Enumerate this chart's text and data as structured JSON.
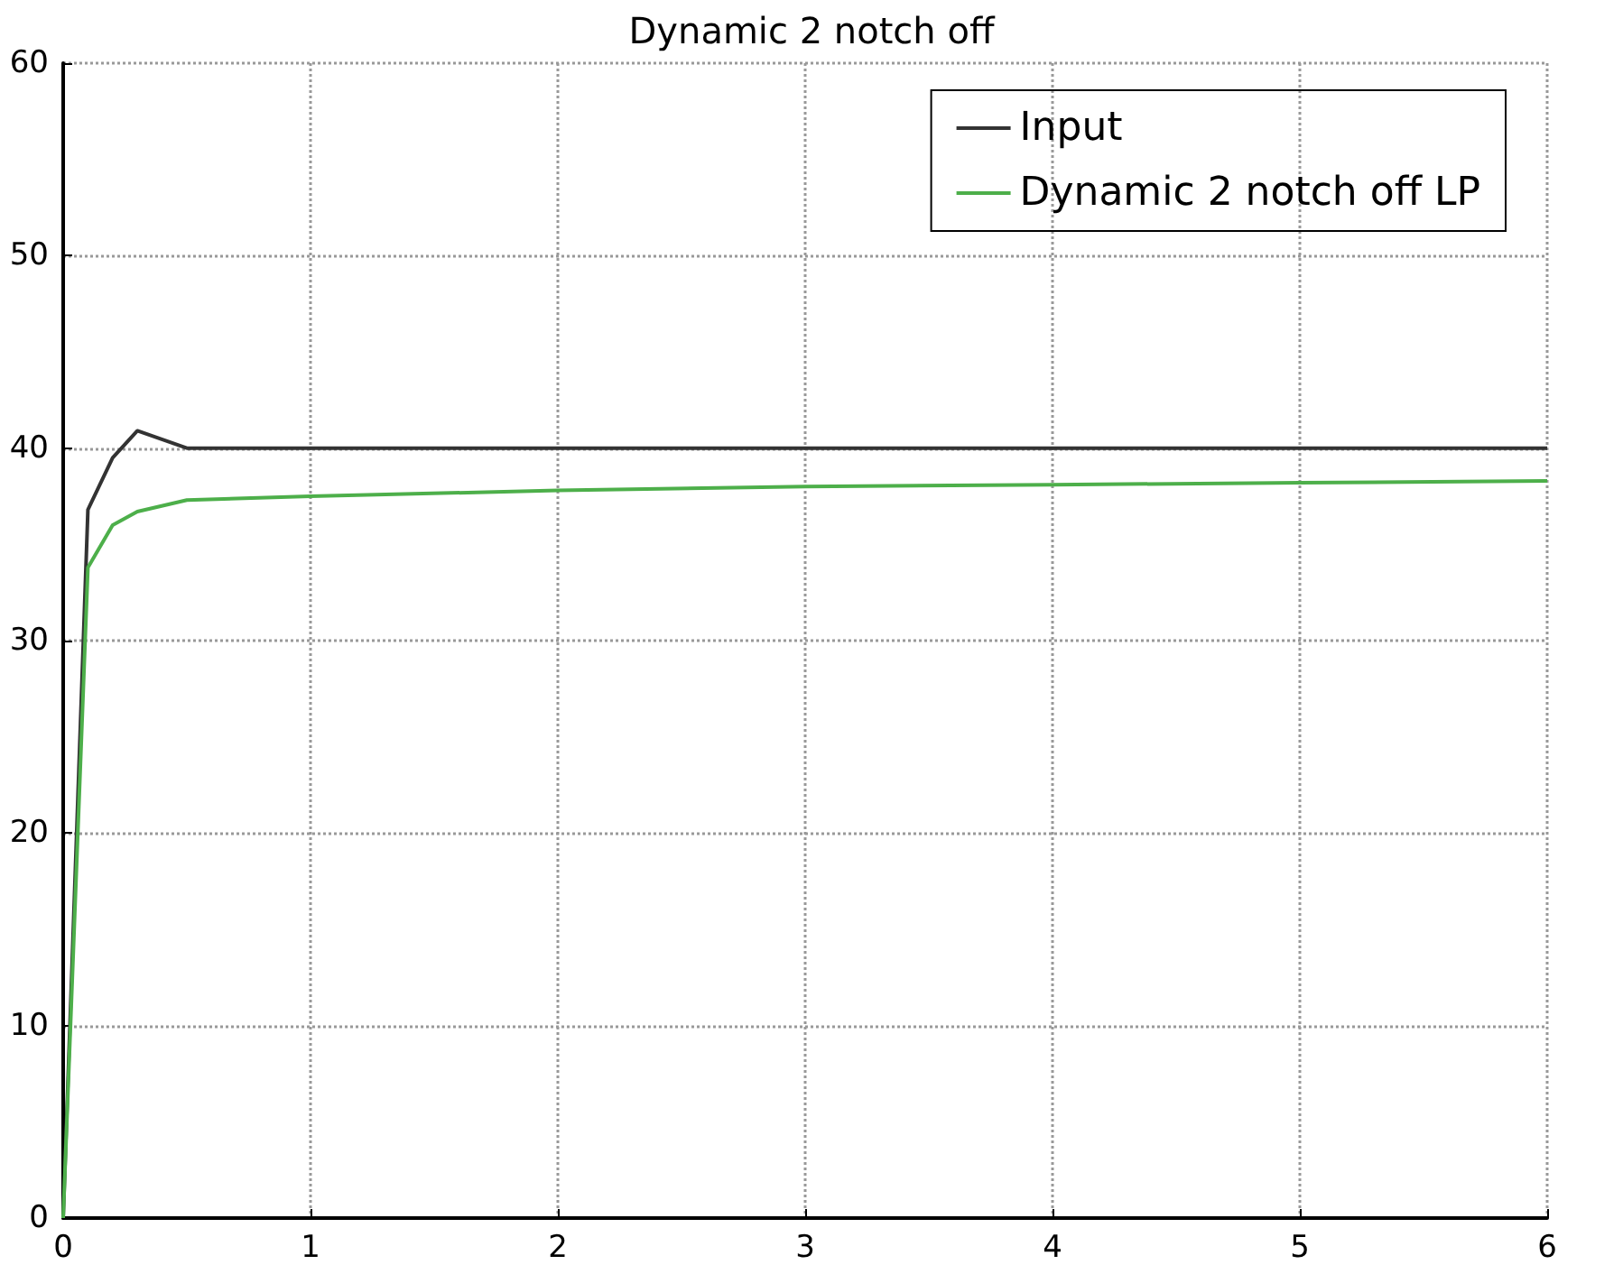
{
  "chart_data": {
    "type": "line",
    "title": "Dynamic 2 notch off",
    "xlim": [
      0,
      6
    ],
    "xticks": [
      0,
      1,
      2,
      3,
      4,
      5,
      6
    ],
    "ylim": [
      0,
      60
    ],
    "yticks": [
      0,
      10,
      20,
      30,
      40,
      50,
      60
    ],
    "grid": true,
    "legend": "top right",
    "marker": "none",
    "line_style": "solid",
    "series": [
      {
        "name": "Input",
        "color": "#333333",
        "x": [
          0,
          0.1,
          0.2,
          0.3,
          0.5,
          6
        ],
        "values": [
          0,
          36.8,
          39.5,
          40.9,
          40,
          40
        ]
      },
      {
        "name": "Dynamic 2 notch off LP",
        "color": "#4daf4a",
        "x": [
          0,
          0.1,
          0.2,
          0.3,
          0.5,
          1,
          2,
          3,
          4,
          5,
          6
        ],
        "values": [
          0,
          33.8,
          36,
          36.7,
          37.3,
          37.5,
          37.8,
          38,
          38.1,
          38.2,
          38.3
        ]
      }
    ]
  }
}
